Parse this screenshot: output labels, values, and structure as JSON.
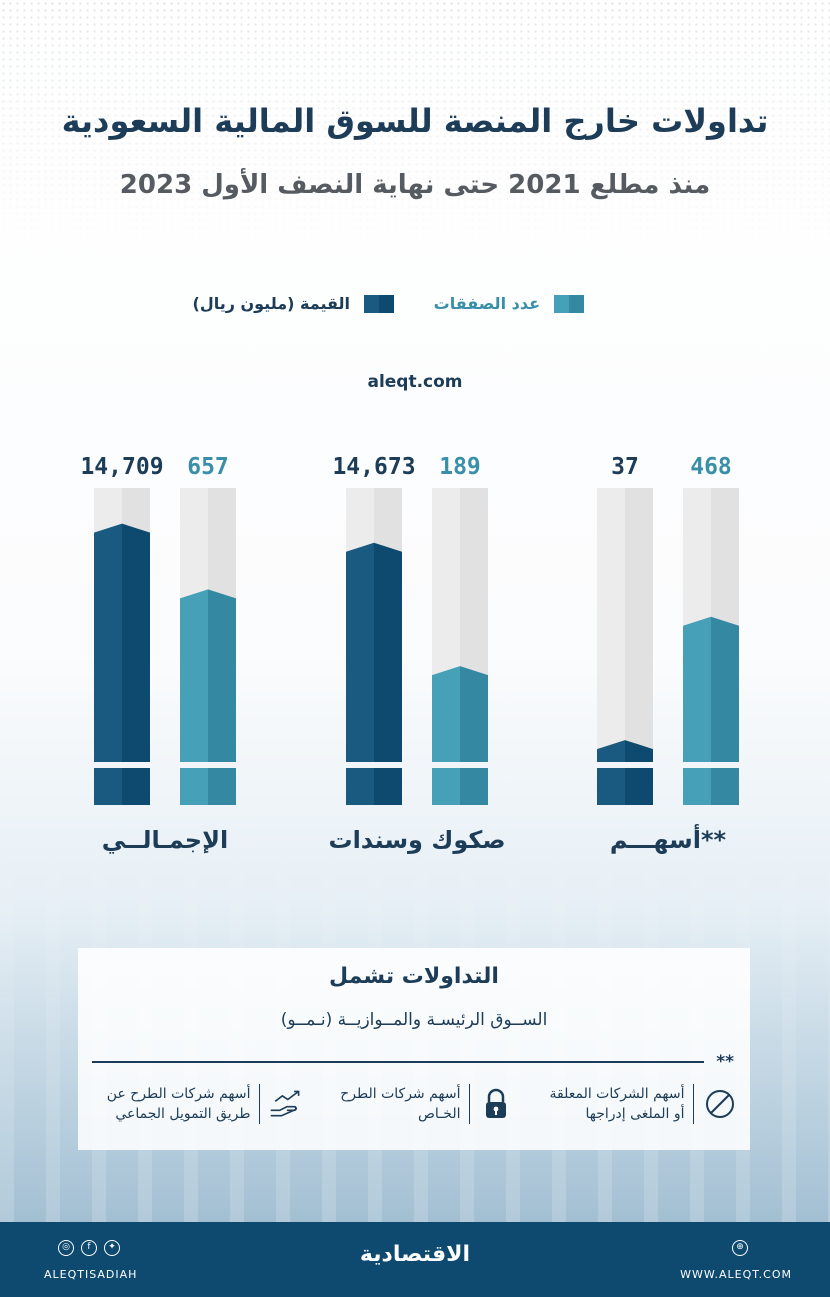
{
  "header": {
    "title": "تداولات خارج المنصة للسوق المالية السعودية",
    "subtitle": "منذ مطلع 2021 حتى نهاية النصف الأول 2023"
  },
  "legend": {
    "count_label": "عدد الصفقات",
    "value_label": "القيمة (مليون ريال)"
  },
  "source_site": "aleqt.com",
  "chart_data": {
    "type": "bar",
    "categories": [
      "الإجمـالــي",
      "صكوك وسندات",
      "**أسهـــم"
    ],
    "series": [
      {
        "name": "القيمة (مليون ريال)",
        "values": [
          14709,
          14673,
          37
        ],
        "labels": [
          "14,709",
          "14,673",
          "37"
        ],
        "color": "#11507a"
      },
      {
        "name": "عدد الصفقات",
        "values": [
          657,
          189,
          468
        ],
        "labels": [
          "657",
          "189",
          "468"
        ],
        "color": "#3e98b2"
      }
    ],
    "bar_fill_fraction": {
      "value": [
        0.87,
        0.8,
        0.08
      ],
      "count": [
        0.63,
        0.35,
        0.53
      ]
    },
    "colors": {
      "value_dark": "#0e4a6f",
      "value_light": "#1b5a80",
      "count_dark": "#3588a2",
      "count_light": "#46a0b8",
      "track_light": "#ececec",
      "track_dark": "#e1e1e1",
      "value_text": "#1c3c57",
      "count_text": "#3a8fa8"
    }
  },
  "info": {
    "title": "التداولات تشمل",
    "subtitle": "الســوق الرئيسـة والمــوازيــة (نـمــو)",
    "stars": "**",
    "items": [
      {
        "icon": "prohibited-icon",
        "line1": "أسهم الشركات المعلقة",
        "line2": "أو الملغى إدراجها"
      },
      {
        "icon": "lock-icon",
        "line1": "أسهم شركات الطرح",
        "line2": "الخـاص"
      },
      {
        "icon": "hand-growth-icon",
        "line1": "أسهم شركات الطرح عن",
        "line2": "طريق التمويل الجماعي"
      }
    ]
  },
  "footer": {
    "brand": "الاقتصادية",
    "social_handle": "ALEQTISADIAH",
    "website": "WWW.ALEQT.COM",
    "social_icons": [
      "instagram-icon",
      "facebook-icon",
      "twitter-icon"
    ],
    "web_icon": "globe-icon"
  }
}
